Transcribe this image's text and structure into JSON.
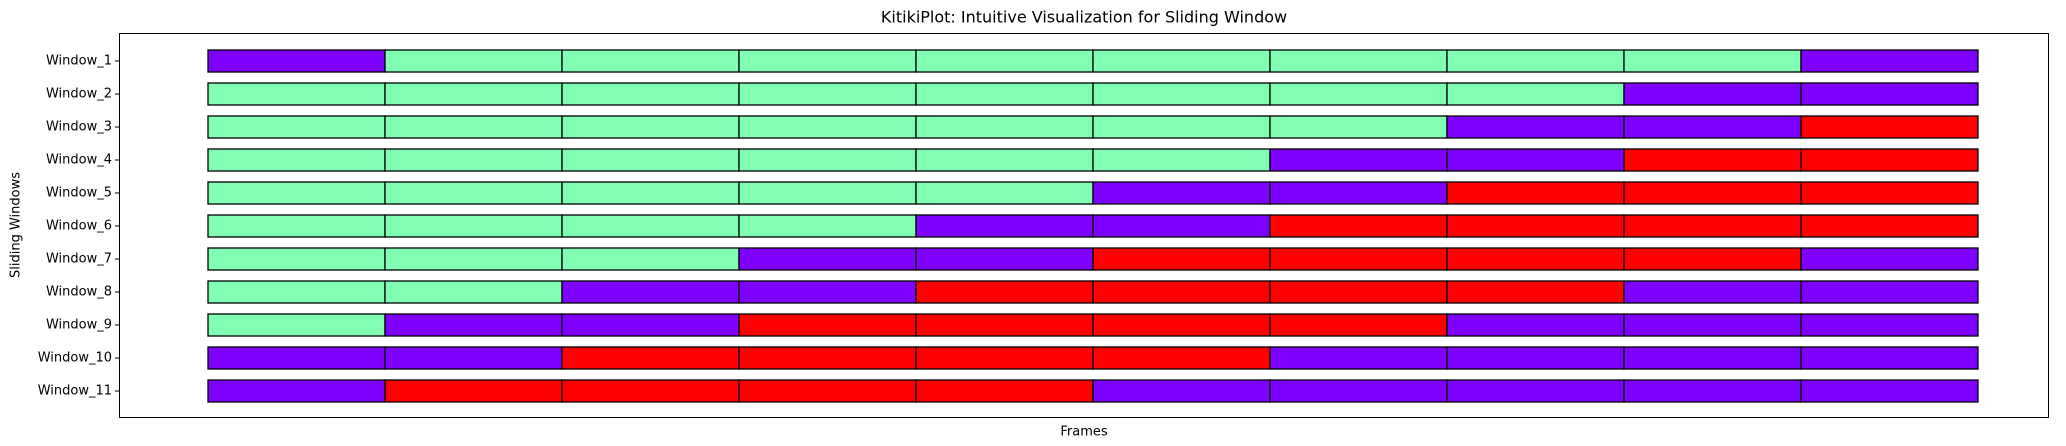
{
  "chart_data": {
    "type": "kitiki",
    "title": "KitikiPlot: Intuitive Visualization for Sliding Window",
    "xlabel": "Frames",
    "ylabel": "Sliding Windows",
    "rows": [
      {
        "name": "Window_1",
        "cells": [
          "#8000ff",
          "#80ffb4",
          "#80ffb4",
          "#80ffb4",
          "#80ffb4",
          "#80ffb4",
          "#80ffb4",
          "#80ffb4",
          "#80ffb4",
          "#8000ff"
        ]
      },
      {
        "name": "Window_2",
        "cells": [
          "#80ffb4",
          "#80ffb4",
          "#80ffb4",
          "#80ffb4",
          "#80ffb4",
          "#80ffb4",
          "#80ffb4",
          "#80ffb4",
          "#8000ff",
          "#8000ff"
        ]
      },
      {
        "name": "Window_3",
        "cells": [
          "#80ffb4",
          "#80ffb4",
          "#80ffb4",
          "#80ffb4",
          "#80ffb4",
          "#80ffb4",
          "#80ffb4",
          "#8000ff",
          "#8000ff",
          "#ff0000"
        ]
      },
      {
        "name": "Window_4",
        "cells": [
          "#80ffb4",
          "#80ffb4",
          "#80ffb4",
          "#80ffb4",
          "#80ffb4",
          "#80ffb4",
          "#8000ff",
          "#8000ff",
          "#ff0000",
          "#ff0000"
        ]
      },
      {
        "name": "Window_5",
        "cells": [
          "#80ffb4",
          "#80ffb4",
          "#80ffb4",
          "#80ffb4",
          "#80ffb4",
          "#8000ff",
          "#8000ff",
          "#ff0000",
          "#ff0000",
          "#ff0000"
        ]
      },
      {
        "name": "Window_6",
        "cells": [
          "#80ffb4",
          "#80ffb4",
          "#80ffb4",
          "#80ffb4",
          "#8000ff",
          "#8000ff",
          "#ff0000",
          "#ff0000",
          "#ff0000",
          "#ff0000"
        ]
      },
      {
        "name": "Window_7",
        "cells": [
          "#80ffb4",
          "#80ffb4",
          "#80ffb4",
          "#8000ff",
          "#8000ff",
          "#ff0000",
          "#ff0000",
          "#ff0000",
          "#ff0000",
          "#8000ff"
        ]
      },
      {
        "name": "Window_8",
        "cells": [
          "#80ffb4",
          "#80ffb4",
          "#8000ff",
          "#8000ff",
          "#ff0000",
          "#ff0000",
          "#ff0000",
          "#ff0000",
          "#8000ff",
          "#8000ff"
        ]
      },
      {
        "name": "Window_9",
        "cells": [
          "#80ffb4",
          "#8000ff",
          "#8000ff",
          "#ff0000",
          "#ff0000",
          "#ff0000",
          "#ff0000",
          "#8000ff",
          "#8000ff",
          "#8000ff"
        ]
      },
      {
        "name": "Window_10",
        "cells": [
          "#8000ff",
          "#8000ff",
          "#ff0000",
          "#ff0000",
          "#ff0000",
          "#ff0000",
          "#8000ff",
          "#8000ff",
          "#8000ff",
          "#8000ff"
        ]
      },
      {
        "name": "Window_11",
        "cells": [
          "#8000ff",
          "#ff0000",
          "#ff0000",
          "#ff0000",
          "#ff0000",
          "#8000ff",
          "#8000ff",
          "#8000ff",
          "#8000ff",
          "#8000ff"
        ]
      }
    ]
  }
}
